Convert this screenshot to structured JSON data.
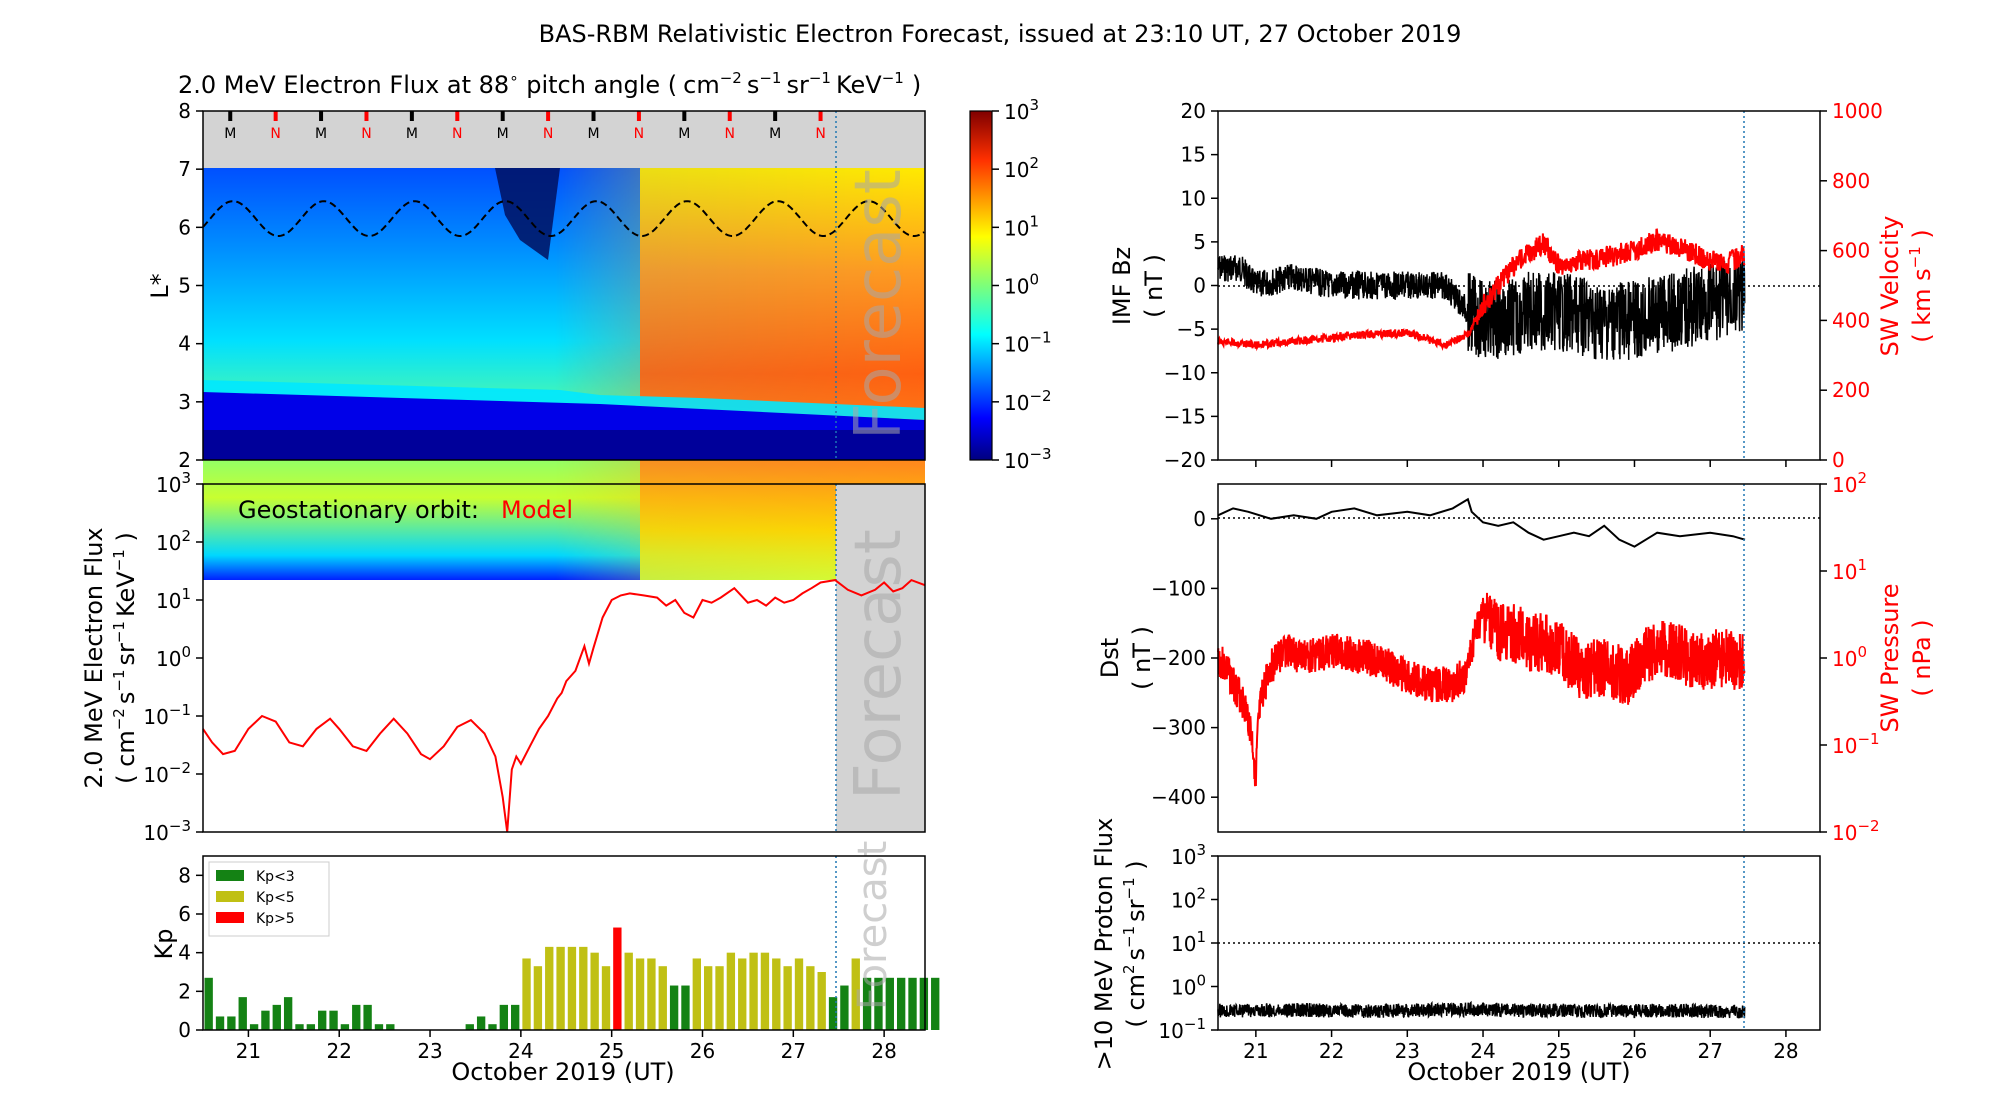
{
  "figure": {
    "title": "BAS-RBM Relativistic Electron Forecast, issued at 23:10 UT, 27 October 2019",
    "xlabel": "October 2019 (UT)",
    "forecast_label": "Forecast",
    "colors": {
      "model": "#ff0000",
      "kp_low": "#148214",
      "kp_mid": "#c0c014",
      "kp_high": "#ff0000",
      "forecast_line": "#1f77b4",
      "grey": "#d3d3d3"
    }
  },
  "chart_data": [
    {
      "id": "flux_map",
      "type": "heatmap",
      "title_main": "2.0 MeV Electron Flux at 88",
      "title_deg": "∘",
      "title_pitch": " pitch angle (",
      "title_units": {
        "cm": "cm",
        "cm_exp": "−2",
        "s": "s",
        "s_exp": "−1",
        "sr": "sr",
        "sr_exp": "−1",
        "kev": "KeV",
        "kev_exp": "−1",
        "close": ")"
      },
      "ylabel": "L*",
      "ylim": [
        2,
        8
      ],
      "xlim": [
        20.5,
        28.45
      ],
      "yticks": [
        "2",
        "3",
        "4",
        "5",
        "6",
        "7",
        "8"
      ],
      "orbit_markers": [
        {
          "x": 20.8,
          "label": "M"
        },
        {
          "x": 21.3,
          "label": "N"
        },
        {
          "x": 21.8,
          "label": "M"
        },
        {
          "x": 22.3,
          "label": "N"
        },
        {
          "x": 22.8,
          "label": "M"
        },
        {
          "x": 23.3,
          "label": "N"
        },
        {
          "x": 23.8,
          "label": "M"
        },
        {
          "x": 24.3,
          "label": "N"
        },
        {
          "x": 24.8,
          "label": "M"
        },
        {
          "x": 25.3,
          "label": "N"
        },
        {
          "x": 25.8,
          "label": "M"
        },
        {
          "x": 26.3,
          "label": "N"
        },
        {
          "x": 26.8,
          "label": "M"
        },
        {
          "x": 27.3,
          "label": "N"
        }
      ],
      "dashed_L_mean": 6.15,
      "dashed_L_amp": 0.3,
      "forecast_start": 27.46,
      "colorbar": {
        "scale": "log",
        "range": [
          0.001,
          1000
        ],
        "ticks": [
          {
            "base": "10",
            "exp": "3"
          },
          {
            "base": "10",
            "exp": "2"
          },
          {
            "base": "10",
            "exp": "1"
          },
          {
            "base": "10",
            "exp": "0"
          },
          {
            "base": "10",
            "exp": "−1"
          },
          {
            "base": "10",
            "exp": "−2"
          },
          {
            "base": "10",
            "exp": "−3"
          }
        ]
      }
    },
    {
      "id": "geo_flux",
      "type": "line",
      "annotation": "Geostationary orbit:",
      "annotation_model": "Model",
      "ylabel_line1": "2.0 MeV Electron Flux",
      "ylabel_line2": {
        "open": "( ",
        "cm": "cm",
        "cm_exp": "−2",
        "s": "s",
        "s_exp": "−1",
        "sr": "sr",
        "sr_exp": "−1",
        "kev": "KeV",
        "kev_exp": "−1",
        "close": " )"
      },
      "yscale": "log",
      "ylim": [
        0.001,
        1000
      ],
      "xlim": [
        20.5,
        28.45
      ],
      "yticks": [
        {
          "base": "10",
          "exp": "−3"
        },
        {
          "base": "10",
          "exp": "−2"
        },
        {
          "base": "10",
          "exp": "−1"
        },
        {
          "base": "10",
          "exp": "0"
        },
        {
          "base": "10",
          "exp": "1"
        },
        {
          "base": "10",
          "exp": "2"
        },
        {
          "base": "10",
          "exp": "3"
        }
      ],
      "series": [
        {
          "x": [
            20.5,
            20.6,
            20.72,
            20.85,
            21.0,
            21.15,
            21.3,
            21.45,
            21.6,
            21.75,
            21.9,
            22.0,
            22.15,
            22.3,
            22.45,
            22.6,
            22.75,
            22.9,
            23.0,
            23.15,
            23.3,
            23.45,
            23.6,
            23.72,
            23.8,
            23.85,
            23.9,
            23.95,
            24.0,
            24.1,
            24.2,
            24.3,
            24.4,
            24.45,
            24.5,
            24.6,
            24.7,
            24.75,
            24.8,
            24.9,
            25.0,
            25.1,
            25.2,
            25.35,
            25.5,
            25.6,
            25.7,
            25.8,
            25.9,
            26.0,
            26.1,
            26.2,
            26.35,
            26.5,
            26.6,
            26.7,
            26.8,
            26.9,
            27.0,
            27.1,
            27.2,
            27.3,
            27.46,
            27.6,
            27.75,
            27.9,
            28.0,
            28.1,
            28.2,
            28.3,
            28.45
          ],
          "y": [
            0.06,
            0.035,
            0.022,
            0.025,
            0.06,
            0.1,
            0.08,
            0.035,
            0.03,
            0.06,
            0.09,
            0.06,
            0.03,
            0.025,
            0.05,
            0.09,
            0.05,
            0.022,
            0.018,
            0.03,
            0.065,
            0.085,
            0.05,
            0.02,
            0.004,
            0.001,
            0.012,
            0.02,
            0.015,
            0.03,
            0.06,
            0.1,
            0.2,
            0.25,
            0.4,
            0.6,
            1.6,
            0.8,
            1.5,
            5.0,
            10,
            12,
            13,
            12,
            11,
            8,
            10,
            6,
            5,
            10,
            9,
            11,
            16,
            9,
            10,
            8,
            11,
            9,
            10,
            13,
            16,
            20,
            22,
            15,
            12,
            15,
            20,
            14,
            16,
            22,
            18
          ]
        }
      ],
      "forecast_start": 27.46
    },
    {
      "id": "kp",
      "type": "bar",
      "ylabel": "Kp",
      "ylim": [
        0,
        9
      ],
      "xlim": [
        20.5,
        28.45
      ],
      "yticks": [
        "0",
        "2",
        "4",
        "6",
        "8"
      ],
      "xticks": [
        "21",
        "22",
        "23",
        "24",
        "25",
        "26",
        "27",
        "28"
      ],
      "legend": [
        "Kp<3",
        "Kp<5",
        "Kp>5"
      ],
      "bin_days": 0.125,
      "start": 20.5,
      "values": [
        2.7,
        0.7,
        0.7,
        1.7,
        0.3,
        1.0,
        1.3,
        1.7,
        0.3,
        0.3,
        1.0,
        1.0,
        0.3,
        1.3,
        1.3,
        0.3,
        0.3,
        0,
        0,
        0,
        0,
        0,
        0,
        0.3,
        0.7,
        0.3,
        1.3,
        1.3,
        3.7,
        3.3,
        4.3,
        4.3,
        4.3,
        4.3,
        4.0,
        3.3,
        5.3,
        4.0,
        3.7,
        3.7,
        3.3,
        2.3,
        2.3,
        3.7,
        3.3,
        3.3,
        4.0,
        3.7,
        4.0,
        4.0,
        3.7,
        3.3,
        3.7,
        3.3,
        3.0,
        1.7,
        2.3,
        3.7,
        2.7,
        2.7,
        2.7,
        2.7,
        2.7,
        2.7,
        2.7
      ],
      "forecast_start": 27.46
    },
    {
      "id": "imf_sw",
      "type": "line",
      "ylabel_left_1": "IMF Bz",
      "ylabel_left_2": "( nT )",
      "ylabel_right_1": "SW Velocity",
      "ylabel_right_2": {
        "open": "( ",
        "km": "km s",
        "exp": "−1",
        "close": " )"
      },
      "ylim_left": [
        -20,
        20
      ],
      "ylim_right": [
        0,
        1000
      ],
      "xlim": [
        20.5,
        28.45
      ],
      "yticks_left": [
        "−20",
        "−15",
        "−10",
        "−5",
        "0",
        "5",
        "10",
        "15",
        "20"
      ],
      "yticks_right": [
        "0",
        "200",
        "400",
        "600",
        "800",
        "1000"
      ],
      "series": [
        {
          "name": "",
          "axis": "left",
          "x": [
            20.5,
            20.8,
            21.0,
            21.5,
            22.0,
            22.5,
            23.0,
            23.5,
            23.8,
            24.0,
            24.3,
            24.6,
            25.0,
            25.5,
            26.0,
            26.5,
            27.0,
            27.46
          ],
          "y": [
            2,
            2,
            0,
            1,
            0,
            0,
            0,
            0,
            -3,
            -4,
            -4,
            -3,
            -3,
            -4,
            -4,
            -3,
            -2,
            -1
          ]
        },
        {
          "name": "",
          "axis": "right",
          "x": [
            20.5,
            21.0,
            21.5,
            22.0,
            22.5,
            23.0,
            23.5,
            23.8,
            24.0,
            24.2,
            24.5,
            24.8,
            25.0,
            25.3,
            25.6,
            26.0,
            26.3,
            26.6,
            26.9,
            27.2,
            27.46
          ],
          "y": [
            340,
            330,
            340,
            350,
            360,
            365,
            330,
            360,
            440,
            500,
            580,
            620,
            560,
            570,
            580,
            600,
            630,
            610,
            580,
            560,
            590
          ]
        }
      ],
      "forecast_start": 27.46
    },
    {
      "id": "dst_swp",
      "type": "line",
      "ylabel_left_1": "Dst",
      "ylabel_left_2": "( nT )",
      "ylabel_right_1": "SW Pressure",
      "ylabel_right_2": "( nPa )",
      "ylim_left": [
        -450,
        50
      ],
      "ylim_right_log": [
        0.01,
        100
      ],
      "xlim": [
        20.5,
        28.45
      ],
      "yticks_left": [
        "0",
        "−100",
        "−200",
        "−300",
        "−400"
      ],
      "yticks_right": [
        {
          "base": "10",
          "exp": "−2"
        },
        {
          "base": "10",
          "exp": "−1"
        },
        {
          "base": "10",
          "exp": "0"
        },
        {
          "base": "10",
          "exp": "1"
        },
        {
          "base": "10",
          "exp": "2"
        }
      ],
      "series": [
        {
          "name": "",
          "axis": "left",
          "x": [
            20.5,
            20.7,
            20.9,
            21.2,
            21.5,
            21.8,
            22.0,
            22.3,
            22.6,
            23.0,
            23.3,
            23.6,
            23.8,
            23.85,
            24.0,
            24.2,
            24.4,
            24.6,
            24.8,
            25.0,
            25.2,
            25.4,
            25.6,
            25.8,
            26.0,
            26.3,
            26.6,
            27.0,
            27.3,
            27.46
          ],
          "y": [
            5,
            15,
            10,
            0,
            5,
            0,
            10,
            15,
            5,
            10,
            5,
            15,
            28,
            10,
            -5,
            -10,
            -5,
            -20,
            -30,
            -25,
            -20,
            -25,
            -10,
            -30,
            -40,
            -20,
            -25,
            -20,
            -25,
            -30
          ]
        },
        {
          "name": "",
          "axis": "right",
          "x": [
            20.5,
            20.7,
            20.9,
            21.0,
            21.2,
            21.4,
            21.6,
            22.0,
            22.5,
            23.0,
            23.3,
            23.6,
            23.8,
            24.0,
            24.2,
            24.4,
            24.6,
            24.8,
            25.0,
            25.3,
            25.6,
            25.9,
            26.2,
            26.5,
            26.8,
            27.1,
            27.46
          ],
          "y": [
            1.0,
            0.5,
            0.2,
            0.03,
            0.8,
            1.2,
            1.0,
            1.2,
            1.0,
            0.6,
            0.5,
            0.5,
            0.7,
            3,
            2,
            2,
            1.5,
            1.5,
            1.2,
            0.7,
            0.8,
            0.6,
            1.2,
            1.3,
            0.9,
            1.0,
            0.9
          ]
        }
      ],
      "forecast_start": 27.46
    },
    {
      "id": "proton",
      "type": "line",
      "ylabel_line1": ">10 MeV Proton Flux",
      "ylabel_line2": {
        "open": "( ",
        "cm": "cm",
        "cm_exp": "2",
        "s": "s",
        "s_exp": "−1",
        "sr": "sr",
        "sr_exp": "−1",
        "close": " )"
      },
      "yscale": "log",
      "ylim": [
        0.1,
        1000
      ],
      "xlim": [
        20.5,
        28.45
      ],
      "threshold": 10,
      "yticks": [
        {
          "base": "10",
          "exp": "−1"
        },
        {
          "base": "10",
          "exp": "0"
        },
        {
          "base": "10",
          "exp": "1"
        },
        {
          "base": "10",
          "exp": "2"
        },
        {
          "base": "10",
          "exp": "3"
        }
      ],
      "xticks": [
        "21",
        "22",
        "23",
        "24",
        "25",
        "26",
        "27",
        "28"
      ],
      "series": [
        {
          "name": "",
          "x": [
            20.5,
            21.0,
            21.5,
            22.0,
            22.5,
            23.0,
            23.5,
            24.0,
            24.5,
            25.0,
            25.5,
            26.0,
            26.5,
            27.0,
            27.46
          ],
          "y": [
            0.28,
            0.28,
            0.29,
            0.28,
            0.27,
            0.28,
            0.29,
            0.3,
            0.28,
            0.28,
            0.27,
            0.28,
            0.28,
            0.27,
            0.26
          ]
        }
      ],
      "forecast_start": 27.46
    }
  ]
}
